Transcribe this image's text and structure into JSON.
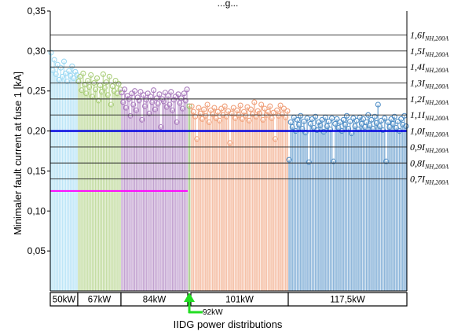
{
  "chart_data": {
    "type": "bar",
    "title": "...g...",
    "ylabel": "Minimaler fault current at fuse 1 [kA]",
    "xlabel": "IIDG power distributions",
    "ylim": [
      0,
      0.35
    ],
    "yticks": [
      "0,05",
      "0,10",
      "0,15",
      "0,20",
      "0,25",
      "0,30",
      "0,35"
    ],
    "grid": false,
    "groups": [
      {
        "label": "50kW",
        "color": "#9dd9f3",
        "values": [
          0.298,
          0.276,
          0.289,
          0.271,
          0.283,
          0.264,
          0.279,
          0.268,
          0.287,
          0.272,
          0.262,
          0.275,
          0.269,
          0.281,
          0.266,
          0.274,
          0.27
        ]
      },
      {
        "label": "67kW",
        "color": "#a9cd78",
        "values": [
          0.262,
          0.268,
          0.251,
          0.272,
          0.258,
          0.247,
          0.263,
          0.255,
          0.27,
          0.243,
          0.26,
          0.252,
          0.266,
          0.238,
          0.257,
          0.249,
          0.271,
          0.254,
          0.261,
          0.245,
          0.268,
          0.233,
          0.256,
          0.25,
          0.263,
          0.247,
          0.259,
          0.252
        ]
      },
      {
        "label": "84kW",
        "color": "#a879bc",
        "values": [
          0.248,
          0.236,
          0.252,
          0.229,
          0.244,
          0.24,
          0.219,
          0.247,
          0.233,
          0.25,
          0.226,
          0.242,
          0.238,
          0.249,
          0.214,
          0.245,
          0.231,
          0.239,
          0.247,
          0.222,
          0.243,
          0.236,
          0.251,
          0.227,
          0.241,
          0.234,
          0.246,
          0.205,
          0.24,
          0.237,
          0.248,
          0.23,
          0.244,
          0.233,
          0.249,
          0.226,
          0.239,
          0.243,
          0.211,
          0.246,
          0.235,
          0.241,
          0.228,
          0.247,
          0.238,
          0.252
        ]
      },
      {
        "label": "92kW",
        "color": "#8fbf6b",
        "values": [
          0.231
        ]
      },
      {
        "label": "101kW",
        "color": "#f0a07a",
        "values": [
          0.231,
          0.224,
          0.218,
          0.19,
          0.229,
          0.222,
          0.215,
          0.227,
          0.219,
          0.233,
          0.211,
          0.226,
          0.221,
          0.229,
          0.216,
          0.224,
          0.213,
          0.228,
          0.22,
          0.231,
          0.218,
          0.225,
          0.185,
          0.222,
          0.229,
          0.216,
          0.226,
          0.22,
          0.232,
          0.215,
          0.224,
          0.219,
          0.23,
          0.213,
          0.227,
          0.221,
          0.236,
          0.218,
          0.225,
          0.222,
          0.233,
          0.214,
          0.228,
          0.22,
          0.224,
          0.231,
          0.216,
          0.223,
          0.19,
          0.226,
          0.219,
          0.232,
          0.221,
          0.228,
          0.217,
          0.225
        ]
      },
      {
        "label": "117,5kW",
        "color": "#4f8ec6",
        "values": [
          0.164,
          0.211,
          0.205,
          0.217,
          0.2,
          0.214,
          0.208,
          0.219,
          0.203,
          0.212,
          0.198,
          0.216,
          0.161,
          0.209,
          0.215,
          0.204,
          0.218,
          0.201,
          0.211,
          0.207,
          0.214,
          0.199,
          0.217,
          0.206,
          0.212,
          0.202,
          0.216,
          0.162,
          0.209,
          0.215,
          0.204,
          0.211,
          0.2,
          0.214,
          0.208,
          0.219,
          0.203,
          0.212,
          0.197,
          0.216,
          0.206,
          0.213,
          0.202,
          0.217,
          0.209,
          0.215,
          0.205,
          0.211,
          0.22,
          0.207,
          0.214,
          0.203,
          0.218,
          0.21,
          0.233,
          0.206,
          0.213,
          0.201,
          0.216,
          0.162,
          0.211,
          0.205,
          0.215,
          0.209,
          0.218,
          0.204,
          0.212,
          0.2,
          0.215,
          0.208,
          0.219,
          0.206
        ]
      }
    ],
    "reference_lines": [
      {
        "value": 0.32,
        "base": "1,6",
        "sub": "NH,200A"
      },
      {
        "value": 0.3,
        "base": "1,5",
        "sub": "NH,200A"
      },
      {
        "value": 0.28,
        "base": "1,4",
        "sub": "NH,200A"
      },
      {
        "value": 0.26,
        "base": "1,3",
        "sub": "NH,200A"
      },
      {
        "value": 0.24,
        "base": "1,2",
        "sub": "NH,200A"
      },
      {
        "value": 0.22,
        "base": "1,1",
        "sub": "NH,200A"
      },
      {
        "value": 0.2,
        "base": "1,0",
        "sub": "NH,200A"
      },
      {
        "value": 0.18,
        "base": "0,9",
        "sub": "NH,200A"
      },
      {
        "value": 0.16,
        "base": "0,8",
        "sub": "NH,200A"
      },
      {
        "value": 0.14,
        "base": "0,7",
        "sub": "NH,200A"
      }
    ],
    "blue_line": {
      "value": 0.2,
      "color": "#0000e0"
    },
    "magenta_line": {
      "value": 0.125,
      "color": "#ff00ff"
    },
    "annotation": {
      "label": "92kW",
      "color": "#22dd22"
    }
  }
}
